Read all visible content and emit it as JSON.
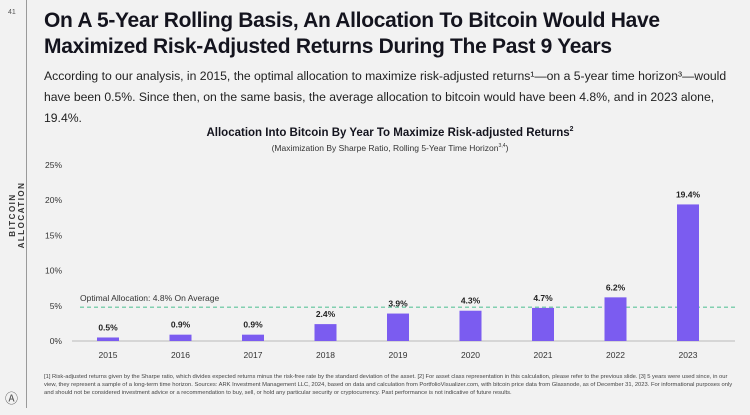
{
  "page_number": "41",
  "title": "On A 5-Year Rolling Basis, An Allocation To Bitcoin Would Have Maximized Risk-Adjusted Returns During The Past 9 Years",
  "lead": "According to our analysis, in 2015, the optimal allocation to maximize risk-adjusted returns¹—on a 5-year time horizon³—would have been 0.5%. Since then, on the same basis, the average allocation to bitcoin would have been 4.8%, and in 2023 alone, 19.4%.",
  "chart_data": {
    "type": "bar",
    "title": "Allocation Into Bitcoin By Year To Maximize Risk-adjusted Returns",
    "title_sup": "2",
    "subtitle": "(Maximization By Sharpe Ratio, Rolling 5-Year Time Horizon",
    "subtitle_sup": "3,4",
    "subtitle_end": ")",
    "ylabel": "BITCOIN ALLOCATION",
    "xlabel": "",
    "ylim": [
      0,
      25
    ],
    "yticks": [
      "0%",
      "5%",
      "10%",
      "15%",
      "20%",
      "25%"
    ],
    "categories": [
      "2015",
      "2016",
      "2017",
      "2018",
      "2019",
      "2020",
      "2021",
      "2022",
      "2023"
    ],
    "values": [
      0.5,
      0.9,
      0.9,
      2.4,
      3.9,
      4.3,
      4.7,
      6.2,
      19.4
    ],
    "data_labels": [
      "0.5%",
      "0.9%",
      "0.9%",
      "2.4%",
      "3.9%",
      "4.3%",
      "4.7%",
      "6.2%",
      "19.4%"
    ],
    "reference_line": {
      "value": 4.8,
      "label": "Optimal Allocation: 4.8% On Average",
      "color": "#5cc49a",
      "style": "dashed"
    },
    "bar_color": "#7b5cf0",
    "grid": false
  },
  "footnote": "[1] Risk-adjusted returns given by the Sharpe ratio, which divides expected returns minus the risk-free rate by the standard deviation of the asset. [2] For asset class representation in this calculation, please refer to the previous slide. [3] 5 years were used since, in our view, they represent a sample of a long-term time horizon. Sources: ARK Investment Management LLC, 2024, based on data and calculation from PortfolioVisualizer.com, with bitcoin price data from Glassnode, as of December 31, 2023. For informational purposes only and should not be considered investment advice or a recommendation to buy, sell, or hold any particular security or cryptocurrency. Past performance is not indicative of future results.",
  "logo": "ARK"
}
